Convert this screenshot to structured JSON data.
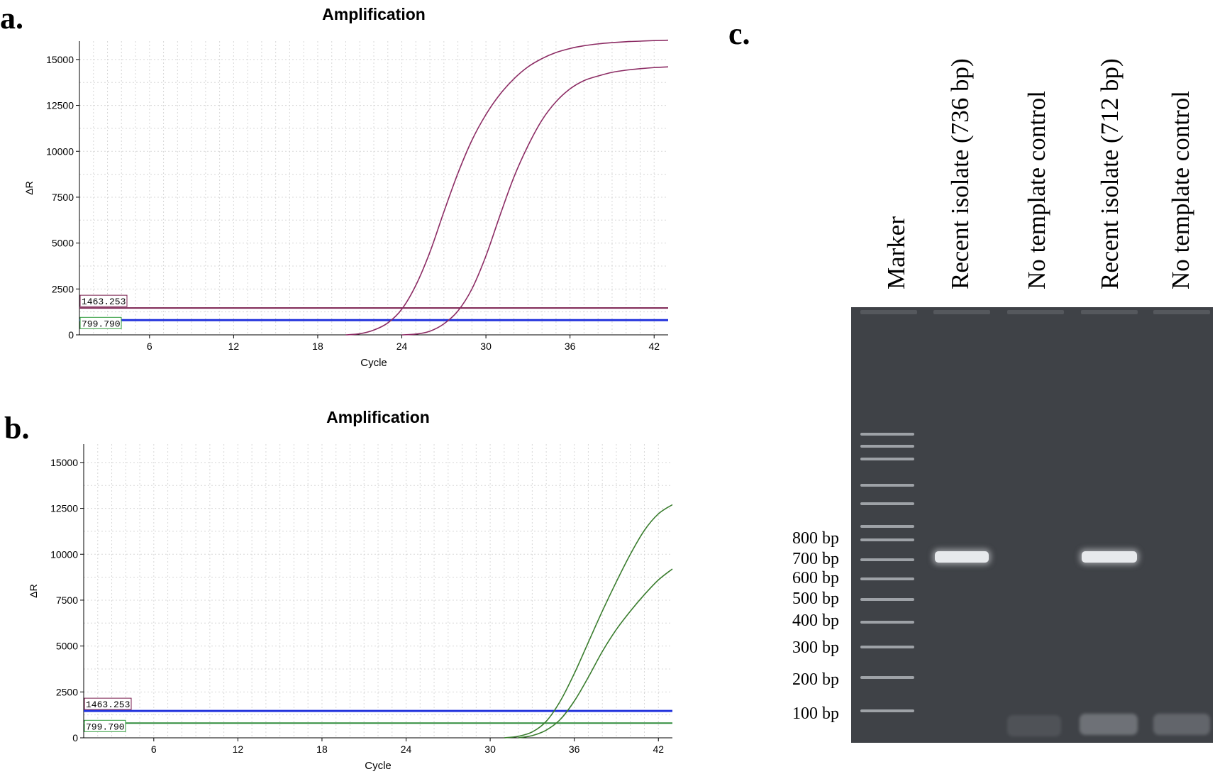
{
  "panels": {
    "a": "a.",
    "b": "b.",
    "c": "c."
  },
  "chart_data": [
    {
      "type": "line",
      "title": "Amplification",
      "xlabel": "Cycle",
      "ylabel": "ΔR",
      "xlim": [
        1,
        43
      ],
      "ylim": [
        0,
        16000
      ],
      "xticks": [
        6,
        12,
        18,
        24,
        30,
        36,
        42
      ],
      "yticks": [
        0,
        2500,
        5000,
        7500,
        10000,
        12500,
        15000
      ],
      "grid": true,
      "threshold_labels": [
        "1463.253",
        "799.790"
      ],
      "thresholds": [
        {
          "value": 1463.253,
          "color": "#7a1f4f",
          "label_color": "#7a1f4f"
        },
        {
          "value": 799.79,
          "color": "#2233dd",
          "label_color": "#2e9b3a"
        }
      ],
      "series": [
        {
          "color": "#8c2c64",
          "values": [
            [
              20,
              0
            ],
            [
              21,
              60
            ],
            [
              22,
              260
            ],
            [
              23,
              650
            ],
            [
              24,
              1400
            ],
            [
              25,
              2700
            ],
            [
              26,
              4500
            ],
            [
              27,
              6700
            ],
            [
              28,
              8800
            ],
            [
              29,
              10600
            ],
            [
              30,
              12000
            ],
            [
              31,
              13100
            ],
            [
              32,
              13950
            ],
            [
              33,
              14600
            ],
            [
              34,
              15050
            ],
            [
              35,
              15380
            ],
            [
              36,
              15600
            ],
            [
              37,
              15750
            ],
            [
              38,
              15850
            ],
            [
              39,
              15920
            ],
            [
              40,
              15970
            ],
            [
              41,
              16000
            ],
            [
              42,
              16030
            ],
            [
              43,
              16050
            ]
          ]
        },
        {
          "color": "#8c2c64",
          "values": [
            [
              24,
              0
            ],
            [
              25,
              40
            ],
            [
              26,
              200
            ],
            [
              27,
              600
            ],
            [
              28,
              1300
            ],
            [
              29,
              2500
            ],
            [
              30,
              4300
            ],
            [
              31,
              6500
            ],
            [
              32,
              8600
            ],
            [
              33,
              10300
            ],
            [
              34,
              11700
            ],
            [
              35,
              12700
            ],
            [
              36,
              13400
            ],
            [
              37,
              13850
            ],
            [
              38,
              14100
            ],
            [
              39,
              14300
            ],
            [
              40,
              14420
            ],
            [
              41,
              14500
            ],
            [
              42,
              14560
            ],
            [
              43,
              14600
            ]
          ]
        }
      ]
    },
    {
      "type": "line",
      "title": "Amplification",
      "xlabel": "Cycle",
      "ylabel": "ΔR",
      "xlim": [
        1,
        43
      ],
      "ylim": [
        0,
        16000
      ],
      "xticks": [
        6,
        12,
        18,
        24,
        30,
        36,
        42
      ],
      "yticks": [
        0,
        2500,
        5000,
        7500,
        10000,
        12500,
        15000
      ],
      "grid": true,
      "threshold_labels": [
        "1463.253",
        "799.790"
      ],
      "thresholds": [
        {
          "value": 1463.253,
          "color": "#2233dd",
          "label_color": "#7a1f4f"
        },
        {
          "value": 799.79,
          "color": "#2e8b3a",
          "label_color": "#2e9b3a"
        }
      ],
      "series": [
        {
          "color": "#3a7d2e",
          "values": [
            [
              31,
              0
            ],
            [
              32,
              80
            ],
            [
              33,
              320
            ],
            [
              34,
              900
            ],
            [
              35,
              2000
            ],
            [
              36,
              3500
            ],
            [
              37,
              5200
            ],
            [
              38,
              6900
            ],
            [
              39,
              8500
            ],
            [
              40,
              10000
            ],
            [
              41,
              11300
            ],
            [
              42,
              12200
            ],
            [
              43,
              12700
            ]
          ]
        },
        {
          "color": "#3a7d2e",
          "values": [
            [
              32,
              0
            ],
            [
              33,
              120
            ],
            [
              34,
              420
            ],
            [
              35,
              1000
            ],
            [
              36,
              2000
            ],
            [
              37,
              3300
            ],
            [
              38,
              4700
            ],
            [
              39,
              5900
            ],
            [
              40,
              6900
            ],
            [
              41,
              7800
            ],
            [
              42,
              8600
            ],
            [
              43,
              9200
            ]
          ]
        }
      ]
    }
  ],
  "gel": {
    "lanes": [
      "Marker",
      "Recent isolate (736 bp)",
      "No template control",
      "Recent isolate (712 bp)",
      "No template control"
    ],
    "bp_labels": [
      "800 bp",
      "700 bp",
      "600 bp",
      "500 bp",
      "400 bp",
      "300 bp",
      "200 bp",
      "100 bp"
    ]
  }
}
